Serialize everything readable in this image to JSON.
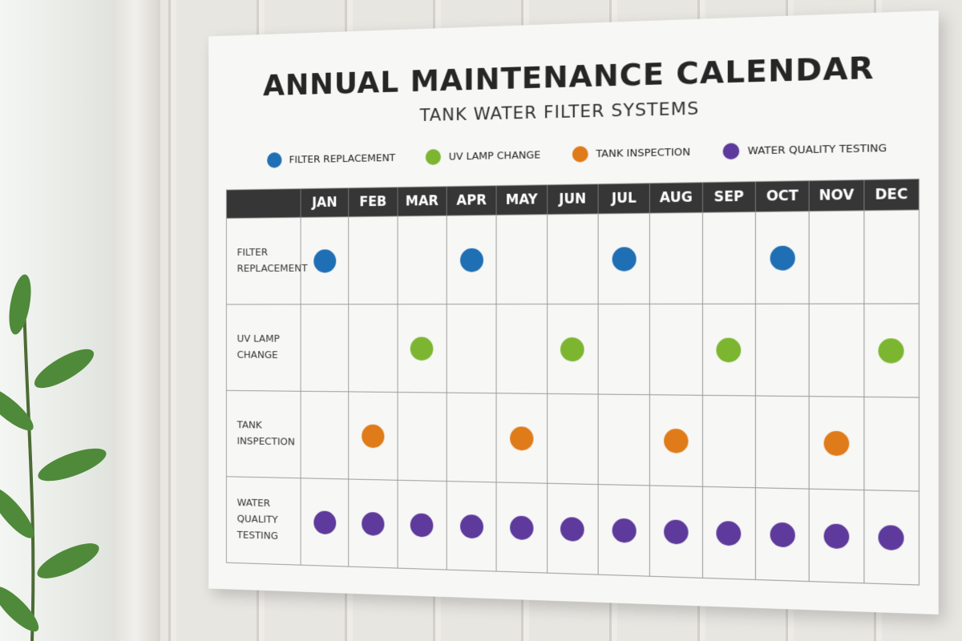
{
  "title": "ANNUAL MAINTENANCE CALENDAR",
  "subtitle": "TANK WATER FILTER SYSTEMS",
  "legend": [
    {
      "label": "FILTER REPLACEMENT",
      "color": "#1f6fb5"
    },
    {
      "label": "UV LAMP CHANGE",
      "color": "#7cb631"
    },
    {
      "label": "TANK INSPECTION",
      "color": "#e07b1a"
    },
    {
      "label": "WATER QUALITY TESTING",
      "color": "#5e3a9c"
    }
  ],
  "table": {
    "months": [
      "JAN",
      "FEB",
      "MAR",
      "APR",
      "MAY",
      "JUN",
      "JUL",
      "AUG",
      "SEP",
      "OCT",
      "NOV",
      "DEC"
    ],
    "rows": [
      {
        "label": "FILTER REPLACEMENT",
        "cells": [
          true,
          false,
          false,
          true,
          false,
          false,
          true,
          false,
          false,
          true,
          false,
          false
        ]
      },
      {
        "label": "UV LAMP CHANGE",
        "cells": [
          false,
          false,
          true,
          false,
          false,
          true,
          false,
          false,
          true,
          false,
          false,
          true
        ]
      },
      {
        "label": "TANK INSPECTION",
        "cells": [
          false,
          true,
          false,
          false,
          true,
          false,
          false,
          true,
          false,
          false,
          true,
          false
        ]
      },
      {
        "label": "WATER QUALITY TESTING",
        "cells": [
          true,
          true,
          true,
          true,
          true,
          true,
          true,
          true,
          true,
          true,
          true,
          true
        ]
      }
    ]
  }
}
